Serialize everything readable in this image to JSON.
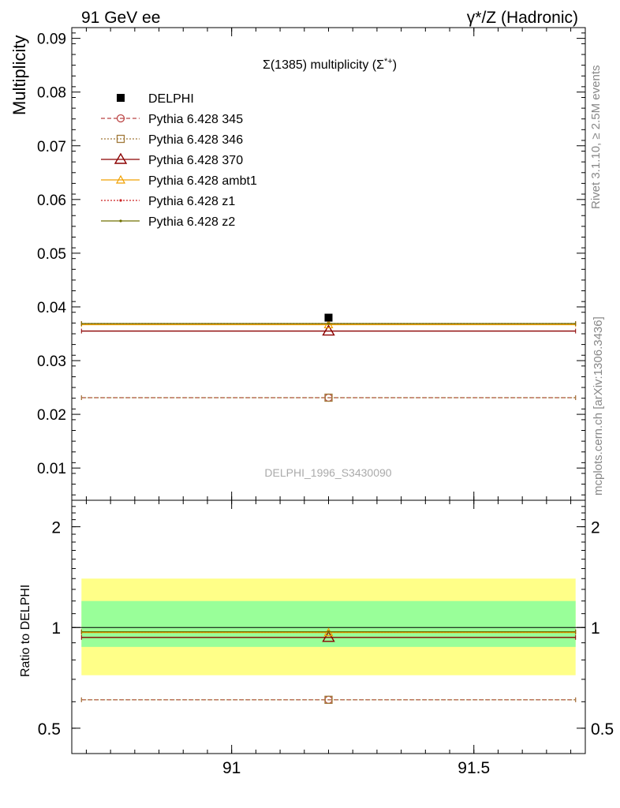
{
  "header": {
    "left": "91 GeV ee",
    "right": "γ*/Z (Hadronic)"
  },
  "side_labels": {
    "rivet": "Rivet 3.1.10, ≥ 2.5M events",
    "mcplots": "mcplots.cern.ch [arXiv:1306.3436]"
  },
  "chart_data": [
    {
      "type": "scatter",
      "title": "Σ(1385) multiplicity (Σ*+)",
      "ylabel": "Multiplicity",
      "xlim": [
        90.67,
        91.73
      ],
      "ylim": [
        0.004,
        0.092
      ],
      "x_ticks": [
        91,
        91.5
      ],
      "y_ticks": [
        0.01,
        0.02,
        0.03,
        0.04,
        0.05,
        0.06,
        0.07,
        0.08,
        0.09
      ],
      "y_tick_labels": [
        "0.01",
        "0.02",
        "0.03",
        "0.04",
        "0.05",
        "0.06",
        "0.07",
        "0.08",
        "0.09"
      ],
      "grid": false,
      "legend_position": "top-left",
      "watermark": "DELPHI_1996_S3430090",
      "x_point": 91.2,
      "x_range": [
        90.69,
        91.71
      ],
      "data": {
        "name": "DELPHI",
        "value": 0.038,
        "color": "#000000",
        "marker": "square"
      },
      "series": [
        {
          "name": "Pythia 6.428 345",
          "value": 0.0231,
          "color": "#bb4444",
          "dash": "5,3",
          "marker": "circle"
        },
        {
          "name": "Pythia 6.428 346",
          "value": 0.0231,
          "color": "#a07838",
          "dash": "2,2",
          "marker": "square-open"
        },
        {
          "name": "Pythia 6.428 370",
          "value": 0.0355,
          "color": "#8b0000",
          "dash": "",
          "marker": "triangle-large"
        },
        {
          "name": "Pythia 6.428 ambt1",
          "value": 0.0367,
          "color": "#f0a000",
          "dash": "",
          "marker": "triangle"
        },
        {
          "name": "Pythia 6.428 z1",
          "value": 0.0369,
          "color": "#cc2222",
          "dash": "2,2",
          "marker": "dot"
        },
        {
          "name": "Pythia 6.428 z2",
          "value": 0.0369,
          "color": "#707000",
          "dash": "",
          "marker": "dot"
        }
      ]
    },
    {
      "type": "line",
      "ylabel": "Ratio to DELPHI",
      "xlim": [
        90.67,
        91.73
      ],
      "ylim": [
        0.42,
        2.4
      ],
      "scale": "log",
      "x_ticks": [
        91,
        91.5
      ],
      "x_tick_labels": [
        "91",
        "91.5"
      ],
      "y_ticks": [
        0.5,
        1,
        2
      ],
      "y_tick_labels": [
        "0.5",
        "1",
        "2"
      ],
      "bands": [
        {
          "low": 0.72,
          "high": 1.4,
          "color": "#ffff88"
        },
        {
          "low": 0.875,
          "high": 1.2,
          "color": "#99ff99"
        }
      ],
      "series": [
        {
          "name": "Pythia 6.428 345",
          "value": 0.608,
          "color": "#bb4444",
          "dash": "5,3",
          "marker": "circle"
        },
        {
          "name": "Pythia 6.428 346",
          "value": 0.608,
          "color": "#a07838",
          "dash": "2,2",
          "marker": "square-open"
        },
        {
          "name": "Pythia 6.428 370",
          "value": 0.934,
          "color": "#8b0000",
          "dash": "",
          "marker": "triangle-large"
        },
        {
          "name": "Pythia 6.428 ambt1",
          "value": 0.966,
          "color": "#f0a000",
          "dash": "",
          "marker": "triangle"
        },
        {
          "name": "Pythia 6.428 z1",
          "value": 0.971,
          "color": "#cc2222",
          "dash": "2,2",
          "marker": "dot"
        },
        {
          "name": "Pythia 6.428 z2",
          "value": 0.971,
          "color": "#707000",
          "dash": "",
          "marker": "dot"
        }
      ]
    }
  ]
}
